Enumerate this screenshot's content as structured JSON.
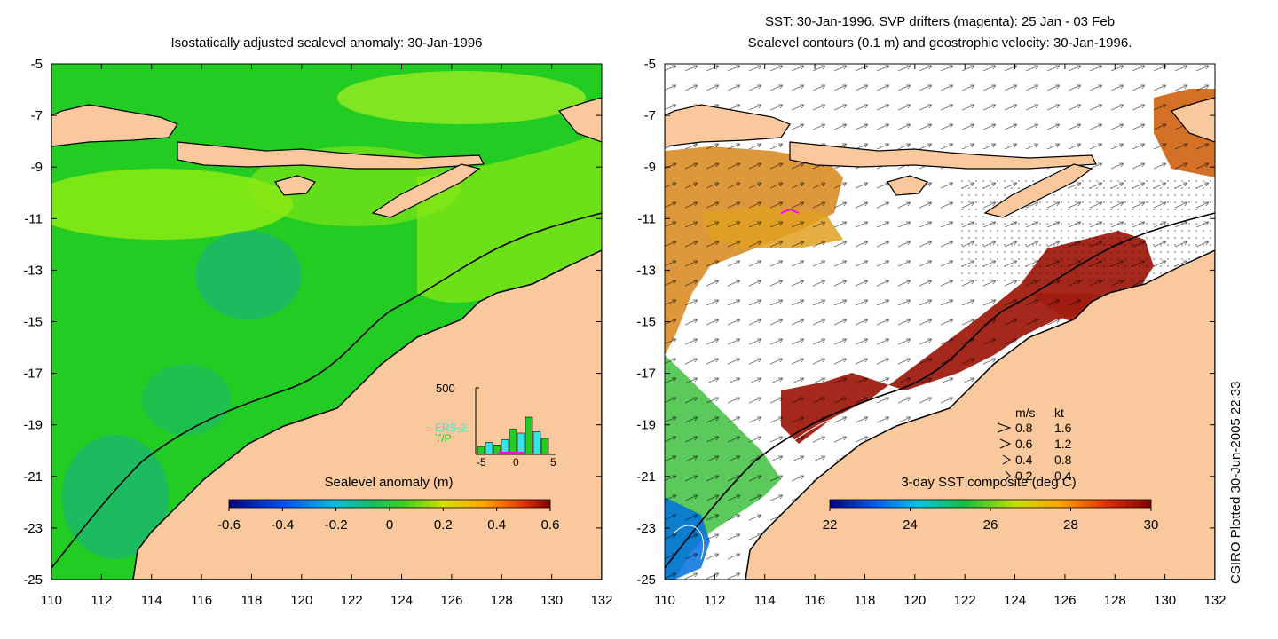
{
  "left_panel": {
    "title": "Isostatically adjusted sealevel anomaly: 30-Jan-1996",
    "colorbar": {
      "label": "Sealevel anomaly (m)",
      "ticks": [
        "-0.6",
        "-0.4",
        "-0.2",
        "0",
        "0.2",
        "0.4",
        "0.6"
      ]
    },
    "histogram": {
      "ymax_label": "500",
      "legend": [
        "ERS-2",
        "T/P"
      ],
      "legend_colors": [
        "#33e6e6",
        "#22cc22"
      ],
      "x_ticks": [
        "-5",
        "0",
        "5"
      ],
      "counts": [
        60,
        90,
        70,
        110,
        190,
        160,
        280,
        170,
        120
      ]
    }
  },
  "right_panel": {
    "title_line1": "SST: 30-Jan-1996. SVP drifters (magenta): 25 Jan - 03 Feb",
    "title_line2": "Sealevel contours (0.1 m) and geostrophic velocity: 30-Jan-1996.",
    "colorbar": {
      "label": "3-day SST composite (deg C)",
      "ticks": [
        "22",
        "24",
        "26",
        "28",
        "30"
      ]
    },
    "velocity_legend": {
      "header_ms": "m/s",
      "header_kt": "kt",
      "rows": [
        {
          "ms": "0.8",
          "kt": "1.6"
        },
        {
          "ms": "0.6",
          "kt": "1.2"
        },
        {
          "ms": "0.4",
          "kt": "0.8"
        },
        {
          "ms": "0.2",
          "kt": "0.4"
        }
      ]
    }
  },
  "axes": {
    "x_ticks": [
      "110",
      "112",
      "114",
      "116",
      "118",
      "120",
      "122",
      "124",
      "126",
      "128",
      "130",
      "132"
    ],
    "y_ticks": [
      "-5",
      "-7",
      "-9",
      "-11",
      "-13",
      "-15",
      "-17",
      "-19",
      "-21",
      "-23",
      "-25"
    ],
    "lon_range": [
      110,
      132
    ],
    "lat_range": [
      -25,
      -5
    ]
  },
  "credit": "CSIRO Plotted 30-Jun-2005 22:33",
  "colors": {
    "land": "#f9c89c",
    "sla_background": "#22cc22",
    "sla_high": "#8cea14",
    "sla_low": "#1ab37a",
    "sst_warm": "#a01c10",
    "sst_mid": "#d8861a",
    "coastline": "#000000"
  }
}
